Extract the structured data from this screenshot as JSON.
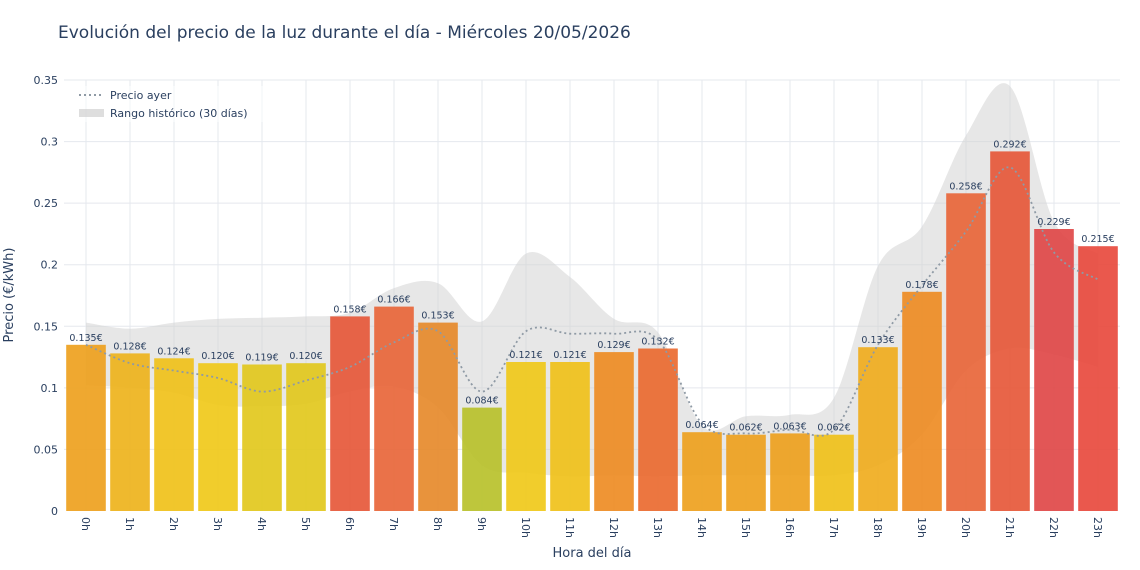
{
  "chart_data": {
    "type": "bar",
    "title": "Evolución del precio de la luz durante el día - Miércoles 20/05/2026",
    "xlabel": "Hora del día",
    "ylabel": "Precio (€/kWh)",
    "ylim": [
      0,
      0.35
    ],
    "yticks": [
      0,
      0.05,
      0.1,
      0.15,
      0.2,
      0.25,
      0.3,
      0.35
    ],
    "ytick_labels": [
      "0",
      "0.05",
      "0.1",
      "0.15",
      "0.2",
      "0.25",
      "0.3",
      "0.35"
    ],
    "grid": true,
    "legend_position": "top-left",
    "categories": [
      "0h",
      "1h",
      "2h",
      "3h",
      "4h",
      "5h",
      "6h",
      "7h",
      "8h",
      "9h",
      "10h",
      "11h",
      "12h",
      "13h",
      "14h",
      "15h",
      "16h",
      "17h",
      "18h",
      "19h",
      "20h",
      "21h",
      "22h",
      "23h"
    ],
    "values": [
      0.135,
      0.128,
      0.124,
      0.12,
      0.119,
      0.12,
      0.158,
      0.166,
      0.153,
      0.084,
      0.121,
      0.121,
      0.129,
      0.132,
      0.064,
      0.062,
      0.063,
      0.062,
      0.133,
      0.178,
      0.258,
      0.292,
      0.229,
      0.215
    ],
    "bar_labels": [
      "0.135€",
      "0.128€",
      "0.124€",
      "0.120€",
      "0.119€",
      "0.120€",
      "0.158€",
      "0.166€",
      "0.153€",
      "0.084€",
      "0.121€",
      "0.121€",
      "0.129€",
      "0.132€",
      "0.064€",
      "0.062€",
      "0.063€",
      "0.062€",
      "0.133€",
      "0.178€",
      "0.258€",
      "0.292€",
      "0.229€",
      "0.215€"
    ],
    "bar_colors": [
      "#eea11e",
      "#eeb31c",
      "#f0c11a",
      "#f0c91a",
      "#e2c81d",
      "#e2c81d",
      "#e6583a",
      "#e8663a",
      "#e68a2b",
      "#b9c12b",
      "#f0c91a",
      "#f0c11a",
      "#ee8c24",
      "#ea6a30",
      "#eea11e",
      "#eea11e",
      "#eea11e",
      "#f0c11a",
      "#f0ac1e",
      "#ee8c24",
      "#e8663a",
      "#e6583a",
      "#e04848",
      "#e84a3e"
    ],
    "series": [
      {
        "name": "Precio ayer",
        "type": "line",
        "style": "dotted",
        "color": "#8f9aa5",
        "values": [
          0.135,
          0.12,
          0.114,
          0.108,
          0.097,
          0.106,
          0.117,
          0.137,
          0.146,
          0.097,
          0.146,
          0.144,
          0.144,
          0.139,
          0.071,
          0.063,
          0.066,
          0.066,
          0.135,
          0.183,
          0.227,
          0.279,
          0.21,
          0.188
        ]
      },
      {
        "name": "Rango histórico (30 días)",
        "type": "band",
        "color": "#d3d3d3",
        "upper": [
          0.153,
          0.148,
          0.153,
          0.156,
          0.157,
          0.158,
          0.161,
          0.181,
          0.185,
          0.154,
          0.209,
          0.19,
          0.156,
          0.145,
          0.069,
          0.077,
          0.078,
          0.092,
          0.199,
          0.231,
          0.305,
          0.345,
          0.235,
          0.209
        ],
        "lower": [
          0.102,
          0.1,
          0.096,
          0.086,
          0.085,
          0.087,
          0.097,
          0.101,
          0.084,
          0.037,
          0.031,
          0.028,
          0.029,
          0.028,
          0.029,
          0.029,
          0.029,
          0.029,
          0.037,
          0.062,
          0.114,
          0.132,
          0.127,
          0.117
        ]
      }
    ]
  }
}
